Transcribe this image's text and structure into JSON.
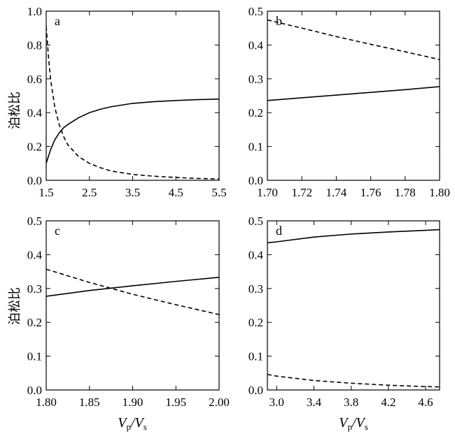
{
  "chart_data": [
    {
      "panel_label": "a",
      "type": "line",
      "ylabel": "泊松比",
      "xlabel": "",
      "xlim": [
        1.5,
        5.5
      ],
      "ylim": [
        0.0,
        1.0
      ],
      "xticks": [
        "1.5",
        "2.5",
        "3.5",
        "4.5",
        "5.5"
      ],
      "yticks": [
        "0.0",
        "0.2",
        "0.4",
        "0.6",
        "0.8",
        "1.0"
      ],
      "grid": false,
      "series": [
        {
          "style": "solid",
          "x": [
            1.5,
            1.6,
            1.7,
            1.8,
            1.9,
            2.0,
            2.25,
            2.5,
            2.75,
            3.0,
            3.5,
            4.0,
            4.5,
            5.0,
            5.5
          ],
          "y": [
            0.1,
            0.18,
            0.24,
            0.28,
            0.31,
            0.33,
            0.37,
            0.4,
            0.42,
            0.435,
            0.455,
            0.465,
            0.472,
            0.477,
            0.48
          ]
        },
        {
          "style": "dashed",
          "x": [
            1.5,
            1.55,
            1.6,
            1.7,
            1.8,
            1.9,
            2.0,
            2.25,
            2.5,
            2.75,
            3.0,
            3.5,
            4.0,
            4.5,
            5.0,
            5.5
          ],
          "y": [
            0.91,
            0.74,
            0.6,
            0.43,
            0.33,
            0.26,
            0.21,
            0.14,
            0.1,
            0.075,
            0.055,
            0.035,
            0.024,
            0.017,
            0.011,
            0.008
          ]
        }
      ]
    },
    {
      "panel_label": "b",
      "type": "line",
      "ylabel": "",
      "xlabel": "",
      "xlim": [
        1.7,
        1.8
      ],
      "ylim": [
        0.0,
        0.5
      ],
      "xticks": [
        "1.70",
        "1.72",
        "1.74",
        "1.76",
        "1.78",
        "1.80"
      ],
      "yticks": [
        "0.0",
        "0.1",
        "0.2",
        "0.3",
        "0.4",
        "0.5"
      ],
      "grid": false,
      "series": [
        {
          "style": "solid",
          "x": [
            1.7,
            1.72,
            1.74,
            1.76,
            1.78,
            1.8
          ],
          "y": [
            0.236,
            0.244,
            0.252,
            0.26,
            0.268,
            0.277
          ]
        },
        {
          "style": "dashed",
          "x": [
            1.7,
            1.72,
            1.74,
            1.76,
            1.78,
            1.8
          ],
          "y": [
            0.474,
            0.45,
            0.425,
            0.402,
            0.38,
            0.357
          ]
        }
      ]
    },
    {
      "panel_label": "c",
      "type": "line",
      "ylabel": "泊松比",
      "xlabel": "Vp/Vs",
      "xlim": [
        1.8,
        2.0
      ],
      "ylim": [
        0.0,
        0.5
      ],
      "xticks": [
        "1.80",
        "1.85",
        "1.90",
        "1.95",
        "2.00"
      ],
      "yticks": [
        "0.0",
        "0.1",
        "0.2",
        "0.3",
        "0.4",
        "0.5"
      ],
      "grid": false,
      "series": [
        {
          "style": "solid",
          "x": [
            1.8,
            1.85,
            1.9,
            1.95,
            2.0
          ],
          "y": [
            0.277,
            0.294,
            0.308,
            0.321,
            0.333
          ]
        },
        {
          "style": "dashed",
          "x": [
            1.8,
            1.85,
            1.9,
            1.95,
            2.0
          ],
          "y": [
            0.357,
            0.318,
            0.283,
            0.252,
            0.223
          ]
        }
      ]
    },
    {
      "panel_label": "d",
      "type": "line",
      "ylabel": "",
      "xlabel": "Vp/Vs",
      "xlim": [
        2.9,
        4.75
      ],
      "ylim": [
        0.0,
        0.5
      ],
      "xticks": [
        "3.0",
        "3.4",
        "3.8",
        "4.2",
        "4.6"
      ],
      "yticks": [
        "0.0",
        "0.1",
        "0.2",
        "0.3",
        "0.4",
        "0.5"
      ],
      "grid": false,
      "series": [
        {
          "style": "solid",
          "x": [
            2.9,
            3.0,
            3.4,
            3.8,
            4.2,
            4.6,
            4.75
          ],
          "y": [
            0.435,
            0.438,
            0.452,
            0.461,
            0.467,
            0.472,
            0.474
          ]
        },
        {
          "style": "dashed",
          "x": [
            2.9,
            3.0,
            3.4,
            3.8,
            4.2,
            4.6,
            4.75
          ],
          "y": [
            0.046,
            0.041,
            0.028,
            0.02,
            0.014,
            0.01,
            0.009
          ]
        }
      ]
    }
  ],
  "ylabel_text": "泊松比",
  "xlabel_main": "V",
  "xlabel_sub_p": "p",
  "xlabel_slash": "/",
  "xlabel_sub_s": "s"
}
